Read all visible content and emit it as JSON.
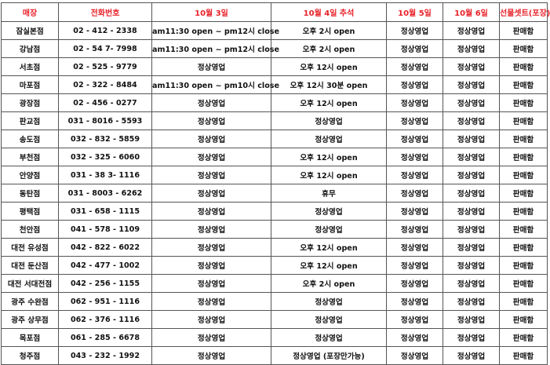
{
  "colors": {
    "header_text": "#e8232a",
    "border": "#555555"
  },
  "columns": [
    "매장",
    "전화번호",
    "10월 3일",
    "10월 4일 추석",
    "10월 5일",
    "10월 6일",
    "선물셋트(포장)"
  ],
  "rows": [
    [
      "잠실본점",
      "02 - 412 - 2338",
      "am11:30 open ~ pm12시 close",
      "오후 2시 open",
      "정상영업",
      "정상영업",
      "판매함"
    ],
    [
      "강남점",
      "02 - 54 7- 7998",
      "am11:30 open ~ pm12시 close",
      "오후 2시 open",
      "정상영업",
      "정상영업",
      "판매함"
    ],
    [
      "서초점",
      "02 - 525 - 9779",
      "정상영업",
      "오후 12시 open",
      "정상영업",
      "정상영업",
      "판매함"
    ],
    [
      "마포점",
      "02 - 322 - 8484",
      "am11:30 open ~ pm10시 close",
      "오후 12시 30분 open",
      "정상영업",
      "정상영업",
      "판매함"
    ],
    [
      "광장점",
      "02 - 456 - 0277",
      "정상영업",
      "오후 12시 open",
      "정상영업",
      "정상영업",
      "판매함"
    ],
    [
      "판교점",
      "031 - 8016 - 5593",
      "정상영업",
      "정상영업",
      "정상영업",
      "정상영업",
      "판매함"
    ],
    [
      "송도점",
      "032 - 832 - 5859",
      "정상영업",
      "정상영업",
      "정상영업",
      "정상영업",
      "판매함"
    ],
    [
      "부천점",
      "032 - 325 - 6060",
      "정상영업",
      "오후 12시 open",
      "정상영업",
      "정상영업",
      "판매함"
    ],
    [
      "안양점",
      "031 - 38 3- 1116",
      "정상영업",
      "오후 12시 open",
      "정상영업",
      "정상영업",
      "판매함"
    ],
    [
      "동탄점",
      "031 - 8003 - 6262",
      "정상영업",
      "휴무",
      "정상영업",
      "정상영업",
      "판매함"
    ],
    [
      "평택점",
      "031 - 658 - 1115",
      "정상영업",
      "정상영업",
      "정상영업",
      "정상영업",
      "판매함"
    ],
    [
      "천안점",
      "041 - 578 - 1109",
      "정상영업",
      "정상영업",
      "정상영업",
      "정상영업",
      "판매함"
    ],
    [
      "대전 유성점",
      "042 - 822 - 6022",
      "정상영업",
      "오후 12시 open",
      "정상영업",
      "정상영업",
      "판매함"
    ],
    [
      "대전 둔산점",
      "042 - 477 - 1002",
      "정상영업",
      "오후 12시 open",
      "정상영업",
      "정상영업",
      "판매함"
    ],
    [
      "대전 서대전점",
      "042 - 256 - 1155",
      "정상영업",
      "오후 2시 open",
      "정상영업",
      "정상영업",
      "판매함"
    ],
    [
      "광주 수완점",
      "062 - 951 - 1116",
      "정상영업",
      "정상영업",
      "정상영업",
      "정상영업",
      "판매함"
    ],
    [
      "광주 상무점",
      "062 - 376 - 1116",
      "정상영업",
      "정상영업",
      "정상영업",
      "정상영업",
      "판매함"
    ],
    [
      "목포점",
      "061 - 285 - 6678",
      "정상영업",
      "정상영업",
      "정상영업",
      "정상영업",
      "판매함"
    ],
    [
      "청주점",
      "043 - 232 - 1992",
      "정상영업",
      "정상영업 (포장만가능)",
      "정상영업",
      "정상영업",
      "판매함"
    ]
  ]
}
